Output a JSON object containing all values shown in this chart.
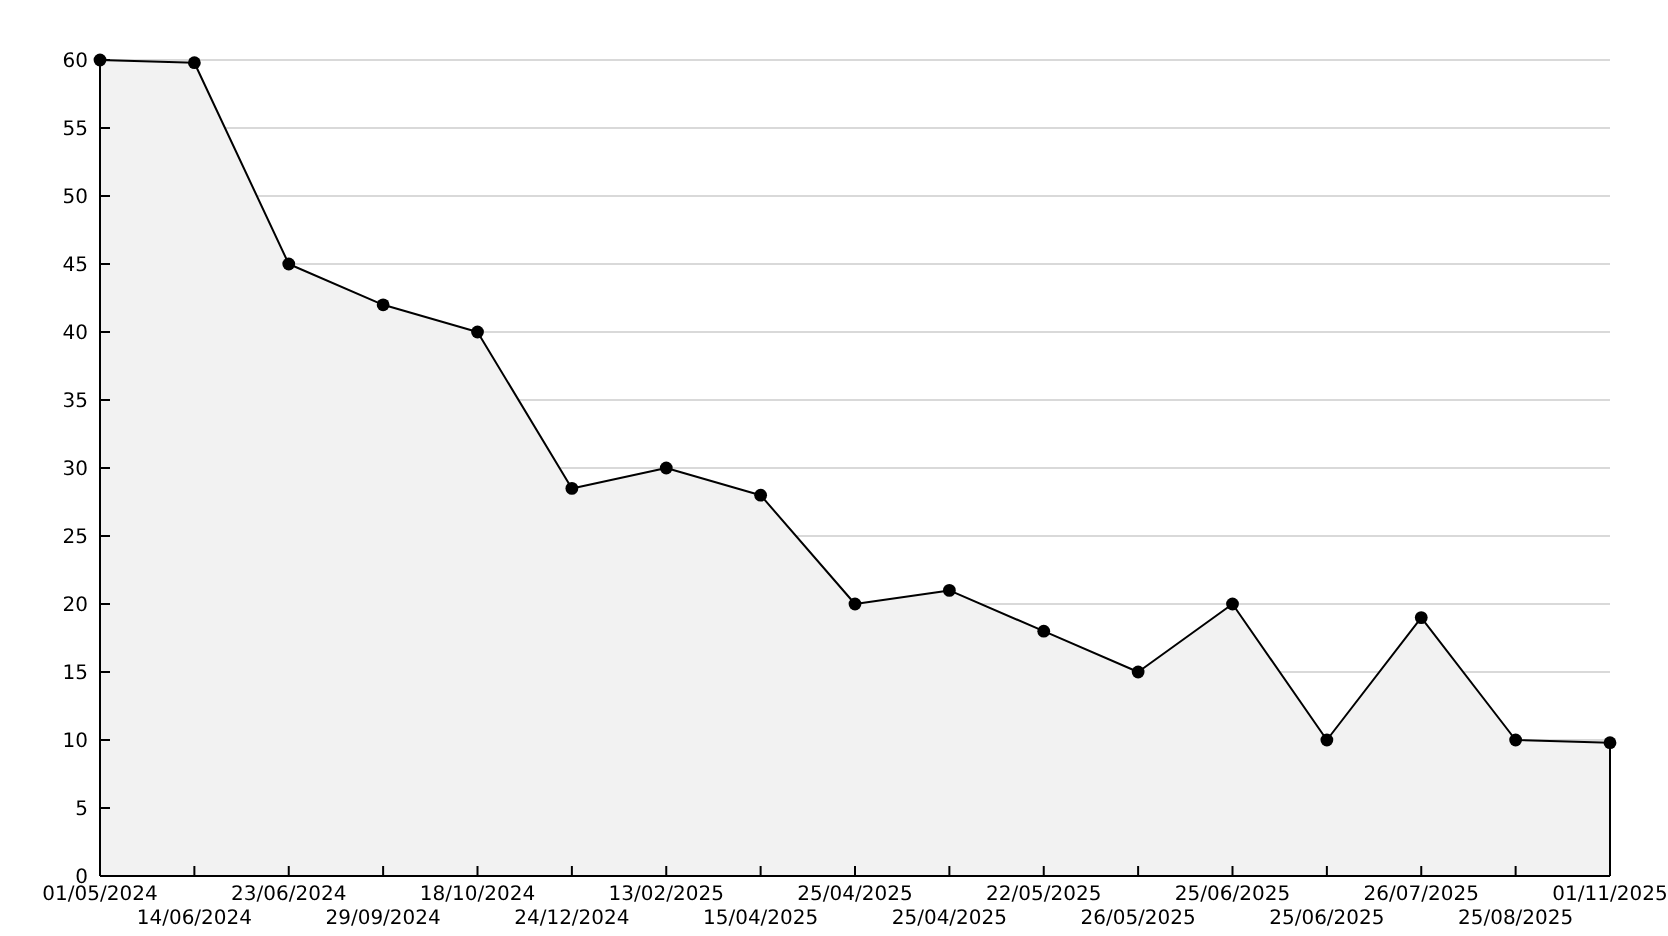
{
  "chart_data": {
    "type": "area",
    "categories": [
      "01/05/2024",
      "14/06/2024",
      "23/06/2024",
      "29/09/2024",
      "18/10/2024",
      "24/12/2024",
      "13/02/2025",
      "15/04/2025",
      "25/04/2025",
      "25/04/2025",
      "22/05/2025",
      "26/05/2025",
      "25/06/2025",
      "25/06/2025",
      "26/07/2025",
      "25/08/2025",
      "01/11/2025"
    ],
    "series": [
      {
        "color": "#000000",
        "values": [
          60,
          59.8,
          45,
          42,
          40,
          28.5,
          30,
          28,
          20,
          21,
          18,
          15,
          20,
          10,
          19,
          10,
          9.8
        ]
      }
    ],
    "ylim": [
      0,
      60
    ],
    "yticks": [
      0,
      5,
      10,
      15,
      20,
      25,
      30,
      35,
      40,
      45,
      50,
      55,
      60
    ],
    "grid": "y",
    "marker": "circle",
    "line_style": "solid"
  }
}
